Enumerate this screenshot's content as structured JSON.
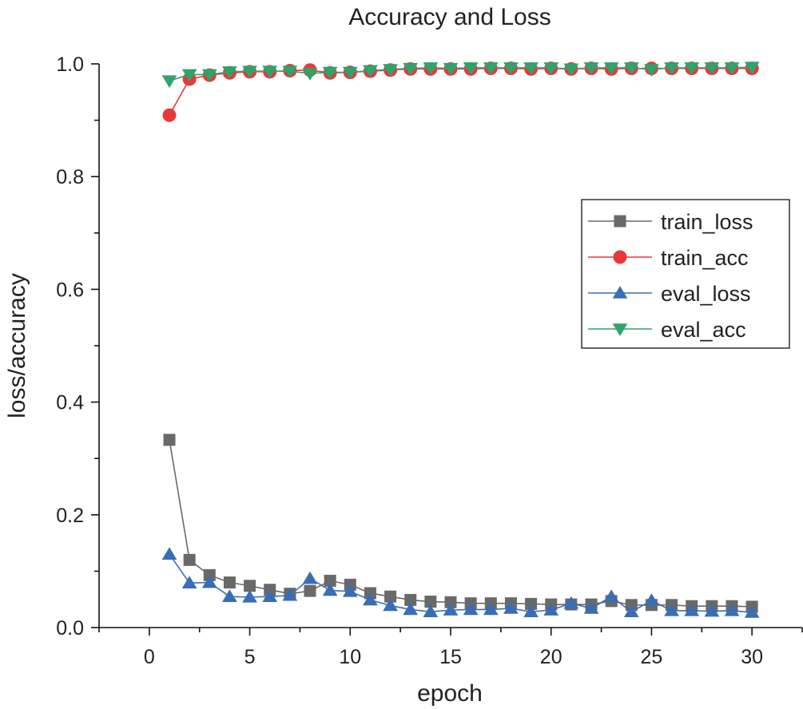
{
  "chart_data": {
    "type": "line",
    "title": "Accuracy and Loss",
    "xlabel": "epoch",
    "ylabel": "loss/accuracy",
    "xlim": [
      -2.5,
      32.5
    ],
    "ylim": [
      0.0,
      1.0
    ],
    "x_ticks": [
      0,
      5,
      10,
      15,
      20,
      25,
      30
    ],
    "x_tick_labels": [
      "0",
      "5",
      "10",
      "15",
      "20",
      "25",
      "30"
    ],
    "y_ticks": [
      0.0,
      0.2,
      0.4,
      0.6,
      0.8,
      1.0
    ],
    "y_tick_labels": [
      "0.0",
      "0.2",
      "0.4",
      "0.6",
      "0.8",
      "1.0"
    ],
    "grid": false,
    "legend_position": "right",
    "x": [
      1,
      2,
      3,
      4,
      5,
      6,
      7,
      8,
      9,
      10,
      11,
      12,
      13,
      14,
      15,
      16,
      17,
      18,
      19,
      20,
      21,
      22,
      23,
      24,
      25,
      26,
      27,
      28,
      29,
      30
    ],
    "series": [
      {
        "name": "train_loss",
        "color": "#696969",
        "marker": "square",
        "values": [
          0.333,
          0.12,
          0.093,
          0.08,
          0.074,
          0.067,
          0.06,
          0.065,
          0.083,
          0.076,
          0.061,
          0.055,
          0.049,
          0.046,
          0.045,
          0.043,
          0.043,
          0.043,
          0.042,
          0.041,
          0.041,
          0.041,
          0.047,
          0.04,
          0.04,
          0.04,
          0.038,
          0.038,
          0.038,
          0.037
        ]
      },
      {
        "name": "train_acc",
        "color": "#e8393a",
        "marker": "circle",
        "values": [
          0.909,
          0.973,
          0.98,
          0.984,
          0.986,
          0.986,
          0.988,
          0.989,
          0.984,
          0.985,
          0.987,
          0.989,
          0.991,
          0.991,
          0.991,
          0.991,
          0.992,
          0.992,
          0.991,
          0.992,
          0.991,
          0.992,
          0.991,
          0.992,
          0.992,
          0.992,
          0.992,
          0.992,
          0.992,
          0.992
        ]
      },
      {
        "name": "eval_loss",
        "color": "#3a6db5",
        "marker": "triangle-up",
        "values": [
          0.13,
          0.079,
          0.08,
          0.055,
          0.054,
          0.055,
          0.057,
          0.087,
          0.066,
          0.064,
          0.049,
          0.039,
          0.032,
          0.028,
          0.031,
          0.032,
          0.032,
          0.034,
          0.028,
          0.031,
          0.043,
          0.034,
          0.055,
          0.028,
          0.048,
          0.03,
          0.03,
          0.029,
          0.03,
          0.027
        ]
      },
      {
        "name": "eval_acc",
        "color": "#2fa36b",
        "marker": "triangle-down",
        "values": [
          0.97,
          0.981,
          0.981,
          0.986,
          0.987,
          0.987,
          0.987,
          0.983,
          0.985,
          0.985,
          0.988,
          0.99,
          0.992,
          0.993,
          0.992,
          0.993,
          0.993,
          0.993,
          0.993,
          0.993,
          0.991,
          0.993,
          0.993,
          0.993,
          0.99,
          0.993,
          0.993,
          0.993,
          0.993,
          0.994
        ]
      }
    ]
  }
}
